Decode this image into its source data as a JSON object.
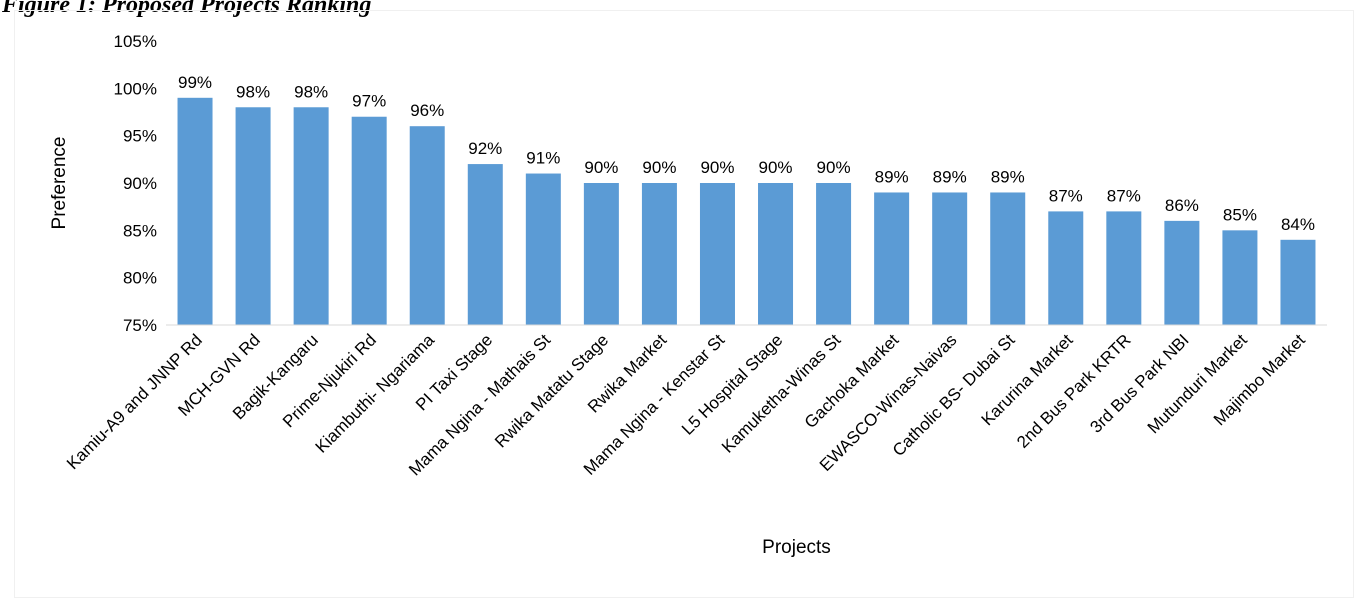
{
  "figure": {
    "caption": "Figure 1: Proposed Projects Ranking"
  },
  "chart_data": {
    "type": "bar",
    "title": "",
    "xlabel": "Projects",
    "ylabel": "Preference",
    "ylim": [
      75,
      105
    ],
    "yticks": [
      75,
      80,
      85,
      90,
      95,
      100,
      105
    ],
    "value_suffix": "%",
    "grid": false,
    "legend": "none",
    "bar_color": "#5b9bd5",
    "categories": [
      "Kamiu-A9 and JNNP Rd",
      "MCH-GVN Rd",
      "Bagik-Kangaru",
      "Prime-Njukiri Rd",
      "Kiambuthi- Ngariama",
      "PI Taxi Stage",
      "Mama Ngina - Mathais St",
      "Rwika Matatu Stage",
      "Rwika Market",
      "Mama Ngina - Kenstar St",
      "L5 Hospital Stage",
      "Kamuketha-Winas St",
      "Gachoka Market",
      "EWASCO-Winas-Naivas",
      "Catholic BS- Dubai St",
      "Karurina Market",
      "2nd Bus Park KRTR",
      "3rd Bus Park NBI",
      "Mutunduri Market",
      "Majimbo Market"
    ],
    "values": [
      99,
      98,
      98,
      97,
      96,
      92,
      91,
      90,
      90,
      90,
      90,
      90,
      89,
      89,
      89,
      87,
      87,
      86,
      85,
      84
    ]
  }
}
